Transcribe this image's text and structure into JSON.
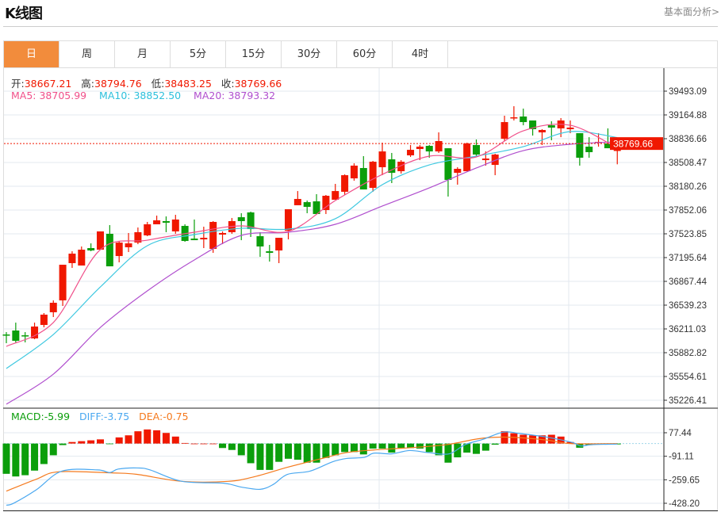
{
  "header": {
    "title": "K线图",
    "link": "基本面分析>"
  },
  "tabs": [
    {
      "label": "日",
      "active": true
    },
    {
      "label": "周"
    },
    {
      "label": "月"
    },
    {
      "label": "5分"
    },
    {
      "label": "15分"
    },
    {
      "label": "30分"
    },
    {
      "label": "60分"
    },
    {
      "label": "4时"
    }
  ],
  "ohlc_info": {
    "open_label": "开:",
    "open": "38667.21",
    "high_label": "高:",
    "high": "38794.76",
    "low_label": "低:",
    "low": "38483.25",
    "close_label": "收:",
    "close": "38769.66"
  },
  "ma_info": {
    "ma5_label": "MA5: ",
    "ma5": "38705.99",
    "ma10_label": "MA10: ",
    "ma10": "38852.50",
    "ma20_label": "MA20: ",
    "ma20": "38793.32"
  },
  "macd_info": {
    "macd_label": "MACD:",
    "macd": "-5.99",
    "diff_label": "DIFF:",
    "diff": "-3.75",
    "dea_label": "DEA:",
    "dea": "-0.75"
  },
  "colors": {
    "up": "#f01800",
    "down": "#0b9e0b",
    "accent": "#f28c3c",
    "ma5": "#f0508a",
    "ma10": "#3ec8e0",
    "ma20": "#b04fce",
    "diff": "#4aa8f0",
    "dea": "#f57a1e",
    "grid": "#e3e9ef"
  },
  "chart_data": [
    {
      "type": "candlestick",
      "title": "K线图",
      "ylim": [
        35226.41,
        39493.09
      ],
      "y_ticks": [
        "39493.09",
        "39164.88",
        "38836.66",
        "38508.47",
        "38180.26",
        "37852.06",
        "37523.85",
        "37195.64",
        "36867.44",
        "36539.23",
        "36211.03",
        "35882.82",
        "35554.61",
        "35226.41"
      ],
      "current_price": "38769.66",
      "ohlc": [
        [
          36134,
          36167,
          36014,
          36123
        ],
        [
          36189,
          36298,
          36025,
          36047
        ],
        [
          36123,
          36167,
          36025,
          36112
        ],
        [
          36080,
          36298,
          36069,
          36244
        ],
        [
          36266,
          36430,
          36233,
          36408
        ],
        [
          36441,
          36605,
          36375,
          36572
        ],
        [
          36605,
          37097,
          36528,
          37097
        ],
        [
          37119,
          37283,
          37053,
          37250
        ],
        [
          37086,
          37349,
          37086,
          37305
        ],
        [
          37327,
          37392,
          37283,
          37294
        ],
        [
          37305,
          37557,
          37305,
          37557
        ],
        [
          37524,
          37644,
          37075,
          37075
        ],
        [
          37217,
          37425,
          37130,
          37403
        ],
        [
          37338,
          37535,
          37272,
          37392
        ],
        [
          37403,
          37611,
          37381,
          37546
        ],
        [
          37502,
          37688,
          37491,
          37655
        ],
        [
          37655,
          37775,
          37655,
          37710
        ],
        [
          37699,
          37764,
          37546,
          37677
        ],
        [
          37557,
          37786,
          37524,
          37721
        ],
        [
          37633,
          37655,
          37414,
          37425
        ],
        [
          37458,
          37721,
          37436,
          37436
        ],
        [
          37447,
          37622,
          37327,
          37469
        ],
        [
          37316,
          37699,
          37261,
          37688
        ],
        [
          37513,
          37557,
          37381,
          37535
        ],
        [
          37546,
          37742,
          37524,
          37699
        ],
        [
          37753,
          37808,
          37436,
          37699
        ],
        [
          37819,
          37830,
          37480,
          37589
        ],
        [
          37491,
          37546,
          37206,
          37349
        ],
        [
          37283,
          37371,
          37141,
          37261
        ],
        [
          37294,
          37469,
          37119,
          37469
        ],
        [
          37567,
          37863,
          37447,
          37863
        ],
        [
          37918,
          38114,
          37918,
          38005
        ],
        [
          37961,
          37983,
          37808,
          37896
        ],
        [
          37972,
          38071,
          37797,
          37797
        ],
        [
          37852,
          38060,
          37797,
          38049
        ],
        [
          37994,
          38213,
          37994,
          38114
        ],
        [
          38104,
          38344,
          38060,
          38333
        ],
        [
          38289,
          38497,
          38257,
          38465
        ],
        [
          38432,
          38596,
          38136,
          38136
        ],
        [
          38158,
          38530,
          38104,
          38519
        ],
        [
          38443,
          38782,
          38333,
          38661
        ],
        [
          38552,
          38640,
          38224,
          38366
        ],
        [
          38388,
          38541,
          38355,
          38519
        ],
        [
          38607,
          38749,
          38585,
          38683
        ],
        [
          38694,
          38749,
          38541,
          38727
        ],
        [
          38738,
          38749,
          38574,
          38661
        ],
        [
          38661,
          38924,
          38640,
          38804
        ],
        [
          38705,
          38705,
          38038,
          38268
        ],
        [
          38366,
          38443,
          38202,
          38421
        ],
        [
          38388,
          38782,
          38388,
          38771
        ],
        [
          38749,
          38826,
          38596,
          38618
        ],
        [
          38541,
          38661,
          38465,
          38563
        ],
        [
          38475,
          38629,
          38333,
          38618
        ],
        [
          38836,
          39154,
          38804,
          39066
        ],
        [
          39121,
          39285,
          39088,
          39132
        ],
        [
          39143,
          39252,
          39022,
          39066
        ],
        [
          39088,
          39088,
          38880,
          38968
        ],
        [
          38924,
          38968,
          38749,
          38957
        ],
        [
          39022,
          39077,
          38815,
          38990
        ],
        [
          38979,
          39121,
          38858,
          39088
        ],
        [
          38968,
          39088,
          38913,
          38990
        ],
        [
          38913,
          38913,
          38465,
          38574
        ],
        [
          38727,
          38858,
          38574,
          38651
        ],
        [
          38782,
          38913,
          38727,
          38793
        ],
        [
          38771,
          38979,
          38705,
          38705
        ],
        [
          38667.21,
          38794.76,
          38483.25,
          38769.66
        ]
      ],
      "ma_index": [
        0,
        5,
        10,
        15,
        20,
        25,
        30,
        35,
        40,
        45,
        50,
        55,
        60,
        65
      ],
      "ma5": [
        35970,
        36299,
        37305,
        37436,
        37546,
        37633,
        37557,
        37983,
        38344,
        38596,
        38585,
        38946,
        39022,
        38705.99
      ],
      "ma10": [
        35664,
        36134,
        36790,
        37360,
        37513,
        37600,
        37589,
        37732,
        38202,
        38475,
        38596,
        38727,
        38935,
        38852.5
      ],
      "ma20": [
        35172,
        35587,
        36231,
        36736,
        37163,
        37502,
        37546,
        37655,
        37907,
        38158,
        38432,
        38672,
        38760,
        38793.32
      ]
    },
    {
      "type": "macd",
      "y_ticks": [
        "77.44",
        "-91.11",
        "-259.65",
        "-428.20"
      ],
      "ylim": [
        -428.2,
        77.44
      ],
      "macd": [
        -217,
        -236,
        -227,
        -194,
        -147,
        -84,
        -11,
        11,
        17,
        23,
        30,
        -4,
        44,
        59,
        88,
        101,
        95,
        76,
        50,
        4,
        0,
        0,
        0,
        -32,
        -46,
        -84,
        -141,
        -189,
        -189,
        -131,
        -109,
        -116,
        -137,
        -137,
        -103,
        -84,
        -61,
        -61,
        -78,
        -36,
        -36,
        -65,
        -32,
        -32,
        -36,
        -61,
        -84,
        -137,
        -99,
        -65,
        -74,
        -51,
        -8,
        88,
        74,
        63,
        59,
        59,
        63,
        50,
        11,
        -30,
        -11,
        -4,
        -2,
        -5.99
      ],
      "diff": [
        [
          0,
          -442
        ],
        [
          0.8,
          -427
        ],
        [
          3.2,
          -331
        ],
        [
          5.9,
          -198
        ],
        [
          9.7,
          -189
        ],
        [
          11,
          -208
        ],
        [
          11.9,
          -183
        ],
        [
          13.9,
          -175
        ],
        [
          15.3,
          -189
        ],
        [
          18.7,
          -271
        ],
        [
          23.1,
          -284
        ],
        [
          25,
          -312
        ],
        [
          27,
          -328
        ],
        [
          28.4,
          -293
        ],
        [
          29.9,
          -221
        ],
        [
          32.3,
          -198
        ],
        [
          34.7,
          -131
        ],
        [
          36.2,
          -107
        ],
        [
          38.1,
          -99
        ],
        [
          39.1,
          -69
        ],
        [
          41,
          -74
        ],
        [
          42.9,
          -50
        ],
        [
          44.9,
          -65
        ],
        [
          47.1,
          -74
        ],
        [
          48.8,
          -8
        ],
        [
          50.7,
          30
        ],
        [
          52.9,
          82
        ],
        [
          54.6,
          72
        ],
        [
          57.5,
          46
        ],
        [
          60.2,
          8
        ],
        [
          61.1,
          -17
        ],
        [
          62.3,
          -8
        ],
        [
          65,
          -3.75
        ]
      ],
      "dea": [
        [
          0,
          -341
        ],
        [
          3.2,
          -255
        ],
        [
          5.6,
          -202
        ],
        [
          11.4,
          -211
        ],
        [
          13.9,
          -221
        ],
        [
          18.7,
          -271
        ],
        [
          23.6,
          -271
        ],
        [
          26.5,
          -236
        ],
        [
          29.9,
          -170
        ],
        [
          33.3,
          -112
        ],
        [
          36.2,
          -65
        ],
        [
          39.1,
          -46
        ],
        [
          42.9,
          -30
        ],
        [
          46.8,
          -8
        ],
        [
          50.2,
          34
        ],
        [
          52.6,
          46
        ],
        [
          55.1,
          40
        ],
        [
          57.5,
          25
        ],
        [
          60,
          0
        ],
        [
          65,
          -0.75
        ]
      ]
    }
  ]
}
